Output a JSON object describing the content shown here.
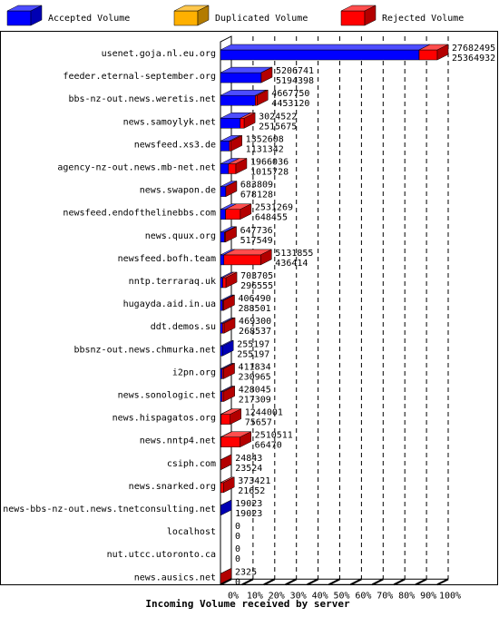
{
  "chart_data": {
    "type": "bar",
    "orientation": "horizontal",
    "xlabel": "Incoming Volume received by server",
    "categories": [
      "usenet.goja.nl.eu.org",
      "feeder.eternal-september.org",
      "bbs-nz-out.news.weretis.net",
      "news.samoylyk.net",
      "newsfeed.xs3.de",
      "agency-nz-out.news.mb-net.net",
      "news.swapon.de",
      "newsfeed.endofthelinebbs.com",
      "news.quux.org",
      "newsfeed.bofh.team",
      "nntp.terraraq.uk",
      "hugayda.aid.in.ua",
      "ddt.demos.su",
      "bbsnz-out.news.chmurka.net",
      "i2pn.org",
      "news.sonologic.net",
      "news.hispagatos.org",
      "news.nntp4.net",
      "csiph.com",
      "news.snarked.org",
      "news-bbs-nz-out.news.tnetconsulting.net",
      "localhost",
      "nut.utcc.utoronto.ca",
      "news.ausics.net"
    ],
    "totals": [
      27682495,
      5206741,
      4667750,
      3024522,
      1352608,
      1966036,
      683809,
      2531269,
      647736,
      5131855,
      703705,
      406490,
      469300,
      255197,
      411834,
      428045,
      1244001,
      2510511,
      24843,
      373421,
      19023,
      0,
      0,
      2325
    ],
    "series": [
      {
        "name": "Accepted Volume",
        "color": "#0000ff",
        "values": [
          25364932,
          5194398,
          4453120,
          2515675,
          1131342,
          1015728,
          678128,
          648455,
          517549,
          436414,
          296555,
          288501,
          268537,
          255197,
          230965,
          217309,
          75657,
          66470,
          23524,
          21652,
          19023,
          0,
          0,
          0
        ]
      },
      {
        "name": "Duplicated Volume",
        "color": "#ffb000",
        "values": [
          0,
          0,
          0,
          0,
          0,
          0,
          0,
          0,
          0,
          0,
          0,
          0,
          0,
          0,
          0,
          0,
          0,
          0,
          0,
          0,
          0,
          0,
          0,
          0
        ]
      },
      {
        "name": "Rejected Volume",
        "color": "#ff0000",
        "values": [
          2317563,
          12343,
          214630,
          508847,
          221266,
          950308,
          5681,
          1882814,
          130187,
          4695441,
          407150,
          117989,
          200763,
          0,
          180869,
          210736,
          1168344,
          2444041,
          1319,
          351769,
          0,
          0,
          0,
          2325
        ]
      }
    ],
    "xlim": [
      0,
      27682495
    ],
    "xticks": [
      {
        "value": 0,
        "label": "0%"
      },
      {
        "value": 2768249.5,
        "label": "10%"
      },
      {
        "value": 5536499,
        "label": "20%"
      },
      {
        "value": 8304748.5,
        "label": "30%"
      },
      {
        "value": 11072998,
        "label": "40%"
      },
      {
        "value": 13841247.5,
        "label": "50%"
      },
      {
        "value": 16609497,
        "label": "60%"
      },
      {
        "value": 19377746.5,
        "label": "70%"
      },
      {
        "value": 22145996,
        "label": "80%"
      },
      {
        "value": 24914245.5,
        "label": "90%"
      },
      {
        "value": 27682495,
        "label": "100%"
      }
    ],
    "grid": true
  }
}
